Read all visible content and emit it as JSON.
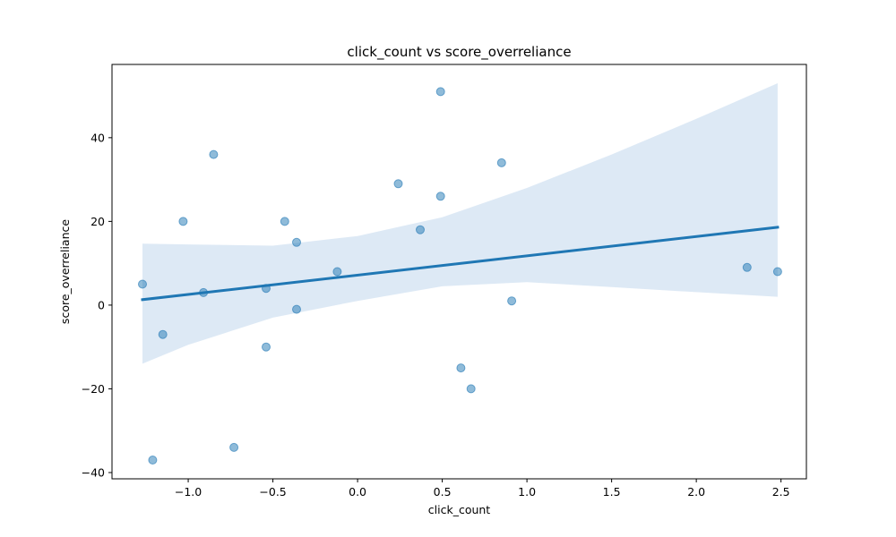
{
  "chart_data": {
    "type": "scatter",
    "title": "click_count vs score_overreliance",
    "xlabel": "click_count",
    "ylabel": "score_overreliance",
    "xlim": [
      -1.45,
      2.65
    ],
    "ylim": [
      -41.5,
      57.5
    ],
    "x_ticks": [
      -1.0,
      -0.5,
      0.0,
      0.5,
      1.0,
      1.5,
      2.0,
      2.5
    ],
    "x_tick_labels": [
      "−1.0",
      "−0.5",
      "0.0",
      "0.5",
      "1.0",
      "1.5",
      "2.0",
      "2.5"
    ],
    "y_ticks": [
      -40,
      -20,
      0,
      20,
      40
    ],
    "y_tick_labels": [
      "−40",
      "−20",
      "0",
      "20",
      "40"
    ],
    "grid": false,
    "points_color": "#1f77b4",
    "line_color": "#1f77b4",
    "band_color": "#c6dbef",
    "points": [
      {
        "x": -1.27,
        "y": 5
      },
      {
        "x": -1.21,
        "y": -37
      },
      {
        "x": -1.15,
        "y": -7
      },
      {
        "x": -1.03,
        "y": 20
      },
      {
        "x": -0.91,
        "y": 3
      },
      {
        "x": -0.85,
        "y": 36
      },
      {
        "x": -0.73,
        "y": -34
      },
      {
        "x": -0.54,
        "y": 4
      },
      {
        "x": -0.54,
        "y": -10
      },
      {
        "x": -0.43,
        "y": 20
      },
      {
        "x": -0.36,
        "y": 15
      },
      {
        "x": -0.36,
        "y": -1
      },
      {
        "x": -0.12,
        "y": 8
      },
      {
        "x": 0.24,
        "y": 29
      },
      {
        "x": 0.37,
        "y": 18
      },
      {
        "x": 0.49,
        "y": 51
      },
      {
        "x": 0.49,
        "y": 26
      },
      {
        "x": 0.61,
        "y": -15
      },
      {
        "x": 0.67,
        "y": -20
      },
      {
        "x": 0.85,
        "y": 34
      },
      {
        "x": 0.91,
        "y": 1
      },
      {
        "x": 2.3,
        "y": 9
      },
      {
        "x": 2.48,
        "y": 8
      }
    ],
    "regression": {
      "x": [
        -1.27,
        2.48
      ],
      "y": [
        1.3,
        18.6
      ]
    },
    "confidence_band": {
      "x": [
        -1.27,
        -1.0,
        -0.5,
        0.0,
        0.5,
        1.0,
        1.5,
        2.0,
        2.48
      ],
      "upper": [
        14.7,
        14.5,
        14.2,
        16.5,
        21.0,
        28.0,
        36.0,
        44.5,
        53.0
      ],
      "lower": [
        -14.0,
        -9.5,
        -3.0,
        1.0,
        4.5,
        5.5,
        4.3,
        3.1,
        2.0
      ]
    }
  }
}
